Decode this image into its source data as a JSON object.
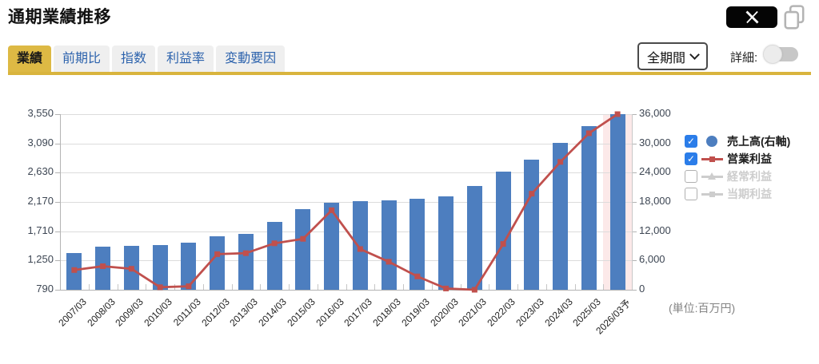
{
  "header": {
    "title": "通期業績推移"
  },
  "icons": {
    "share": "x-logo-icon",
    "copy": "copy-icon",
    "period_chevron": "chevron-down-icon"
  },
  "tabs": [
    {
      "label": "業績",
      "active": true
    },
    {
      "label": "前期比",
      "active": false
    },
    {
      "label": "指数",
      "active": false
    },
    {
      "label": "利益率",
      "active": false
    },
    {
      "label": "変動要因",
      "active": false
    }
  ],
  "controls": {
    "period_value": "全期間",
    "detail_label": "詳細:",
    "detail_toggle_on": false
  },
  "legend": [
    {
      "label": "売上高(右軸)",
      "checked": true,
      "marker": "circle",
      "color": "#4d7ebf",
      "text_color": "#1d1d1d"
    },
    {
      "label": "営業利益",
      "checked": true,
      "marker": "line-square",
      "color": "#c0504d",
      "text_color": "#1d1d1d"
    },
    {
      "label": "経常利益",
      "checked": false,
      "marker": "line-triangle",
      "color": "#cdcdcd",
      "text_color": "#cdcdcd"
    },
    {
      "label": "当期利益",
      "checked": false,
      "marker": "line-square",
      "color": "#cdcdcd",
      "text_color": "#cdcdcd"
    }
  ],
  "chart_data": {
    "type": "combo-bar-line",
    "categories": [
      "2007/03",
      "2008/03",
      "2009/03",
      "2010/03",
      "2011/03",
      "2012/03",
      "2013/03",
      "2014/03",
      "2015/03",
      "2016/03",
      "2017/03",
      "2018/03",
      "2019/03",
      "2020/03",
      "2021/03",
      "2022/03",
      "2023/03",
      "2024/03",
      "2025/03",
      "2026/03予"
    ],
    "series": [
      {
        "name": "売上高(右軸)",
        "type": "bar",
        "axis": "right",
        "color": "#4d7ebf",
        "values": [
          7600,
          8800,
          9000,
          9100,
          9700,
          10900,
          11500,
          13900,
          16500,
          17900,
          18200,
          18400,
          18700,
          19100,
          21300,
          24200,
          26700,
          30100,
          33600,
          36000
        ]
      },
      {
        "name": "営業利益",
        "type": "line",
        "axis": "left",
        "color": "#c0504d",
        "values": [
          1100,
          1160,
          1120,
          830,
          845,
          1350,
          1365,
          1520,
          1590,
          2040,
          1430,
          1230,
          1000,
          810,
          790,
          1510,
          2300,
          2800,
          3250,
          3550
        ]
      }
    ],
    "left_axis": {
      "min": 790,
      "max": 3550,
      "ticks": [
        3550,
        3090,
        2630,
        2170,
        1710,
        1250,
        790
      ]
    },
    "right_axis": {
      "min": 0,
      "max": 36000,
      "ticks": [
        36000,
        30000,
        24000,
        18000,
        12000,
        6000,
        0
      ]
    },
    "forecast_index": 19,
    "forecast_band_color": "#fce9e9",
    "grid": true,
    "legend_position": "right"
  },
  "footer": {
    "unit_note": "(単位:百万円)"
  }
}
